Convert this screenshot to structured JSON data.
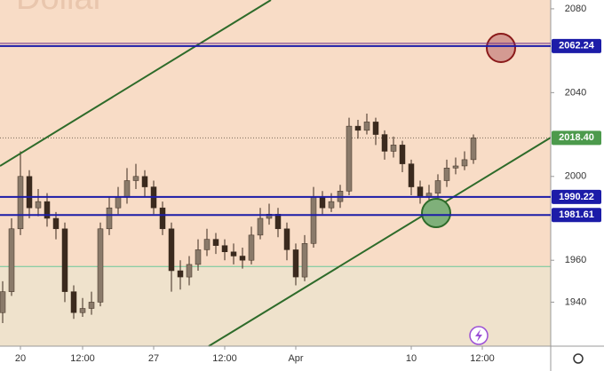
{
  "chart_data": {
    "type": "candlestick",
    "title": "Dollar",
    "x": [
      0,
      1,
      2,
      3,
      4,
      5,
      6,
      7,
      8,
      9,
      10,
      11,
      12,
      13,
      14,
      15,
      16,
      17,
      18,
      19,
      20,
      21,
      22,
      23,
      24,
      25,
      26,
      27,
      28,
      29,
      30,
      31,
      32,
      33,
      34,
      35,
      36,
      37,
      38,
      39,
      40,
      41,
      42,
      43,
      44,
      45,
      46,
      47,
      48,
      49,
      50,
      51,
      52,
      53
    ],
    "open": [
      1935,
      1945,
      1975,
      2000,
      1985,
      1988,
      1980,
      1975,
      1945,
      1935,
      1937,
      1940,
      1975,
      1985,
      1990,
      1998,
      2000,
      1995,
      1985,
      1975,
      1955,
      1952,
      1958,
      1965,
      1970,
      1967,
      1964,
      1962,
      1960,
      1972,
      1980,
      1982,
      1975,
      1965,
      1952,
      1968,
      1990,
      1985,
      1988,
      1993,
      2024,
      2022,
      2026,
      2020,
      2012,
      2015,
      2006,
      1995,
      1990,
      1992,
      1998,
      2004,
      2005,
      2008
    ],
    "high": [
      1950,
      1980,
      2012,
      2003,
      1994,
      1992,
      1983,
      1978,
      1948,
      1942,
      1945,
      1978,
      1990,
      1995,
      2004,
      2006,
      2003,
      1998,
      1988,
      1978,
      1960,
      1962,
      1970,
      1975,
      1973,
      1970,
      1968,
      1966,
      1976,
      1985,
      1987,
      1985,
      1978,
      1968,
      1972,
      1995,
      1993,
      1992,
      1996,
      2028,
      2027,
      2030,
      2028,
      2022,
      2019,
      2017,
      2008,
      1998,
      1996,
      2001,
      2008,
      2009,
      2012,
      2020
    ],
    "low": [
      1930,
      1943,
      1972,
      1980,
      1981,
      1976,
      1970,
      1940,
      1932,
      1933,
      1934,
      1938,
      1972,
      1982,
      1987,
      1994,
      1990,
      1982,
      1972,
      1945,
      1946,
      1948,
      1955,
      1962,
      1963,
      1960,
      1958,
      1956,
      1958,
      1970,
      1977,
      1971,
      1960,
      1948,
      1950,
      1966,
      1982,
      1983,
      1985,
      1991,
      2018,
      2020,
      2015,
      2008,
      2009,
      2002,
      1991,
      1987,
      1986,
      1989,
      1995,
      2001,
      2003,
      2006
    ],
    "close": [
      1945,
      1975,
      2000,
      1985,
      1988,
      1980,
      1975,
      1945,
      1935,
      1937,
      1940,
      1975,
      1985,
      1990,
      1998,
      2000,
      1995,
      1985,
      1975,
      1955,
      1952,
      1958,
      1965,
      1970,
      1967,
      1964,
      1962,
      1960,
      1972,
      1980,
      1982,
      1975,
      1965,
      1952,
      1968,
      1990,
      1985,
      1988,
      1993,
      2024,
      2022,
      2026,
      2020,
      2012,
      2015,
      2006,
      1995,
      1990,
      1992,
      1998,
      2004,
      2005,
      2008,
      2018.4
    ],
    "color": "#3b2a1e",
    "xlim": [
      -0.3,
      61.7
    ],
    "xticks": [
      {
        "value": 2,
        "label": "20"
      },
      {
        "value": 9,
        "label": "12:00"
      },
      {
        "value": 17,
        "label": "27"
      },
      {
        "value": 25,
        "label": "12:00"
      },
      {
        "value": 33,
        "label": "Apr"
      },
      {
        "value": 46,
        "label": "10"
      },
      {
        "value": 54,
        "label": "12:00"
      }
    ],
    "ylim": [
      1919,
      2084.2
    ],
    "yticks": [
      2080,
      2040,
      2000,
      1960,
      1940
    ],
    "price_levels": [
      {
        "value": 2062.24,
        "color": "#1c1ca8"
      },
      {
        "value": 1990.22,
        "color": "#1c1ca8"
      },
      {
        "value": 1981.61,
        "color": "#1c1ca8"
      }
    ],
    "last_price": {
      "value": 2018.4,
      "label": "2018.40",
      "color": "#4c9a4c"
    },
    "support_level": {
      "value": 1957,
      "color": "#6cc79a"
    }
  }
}
